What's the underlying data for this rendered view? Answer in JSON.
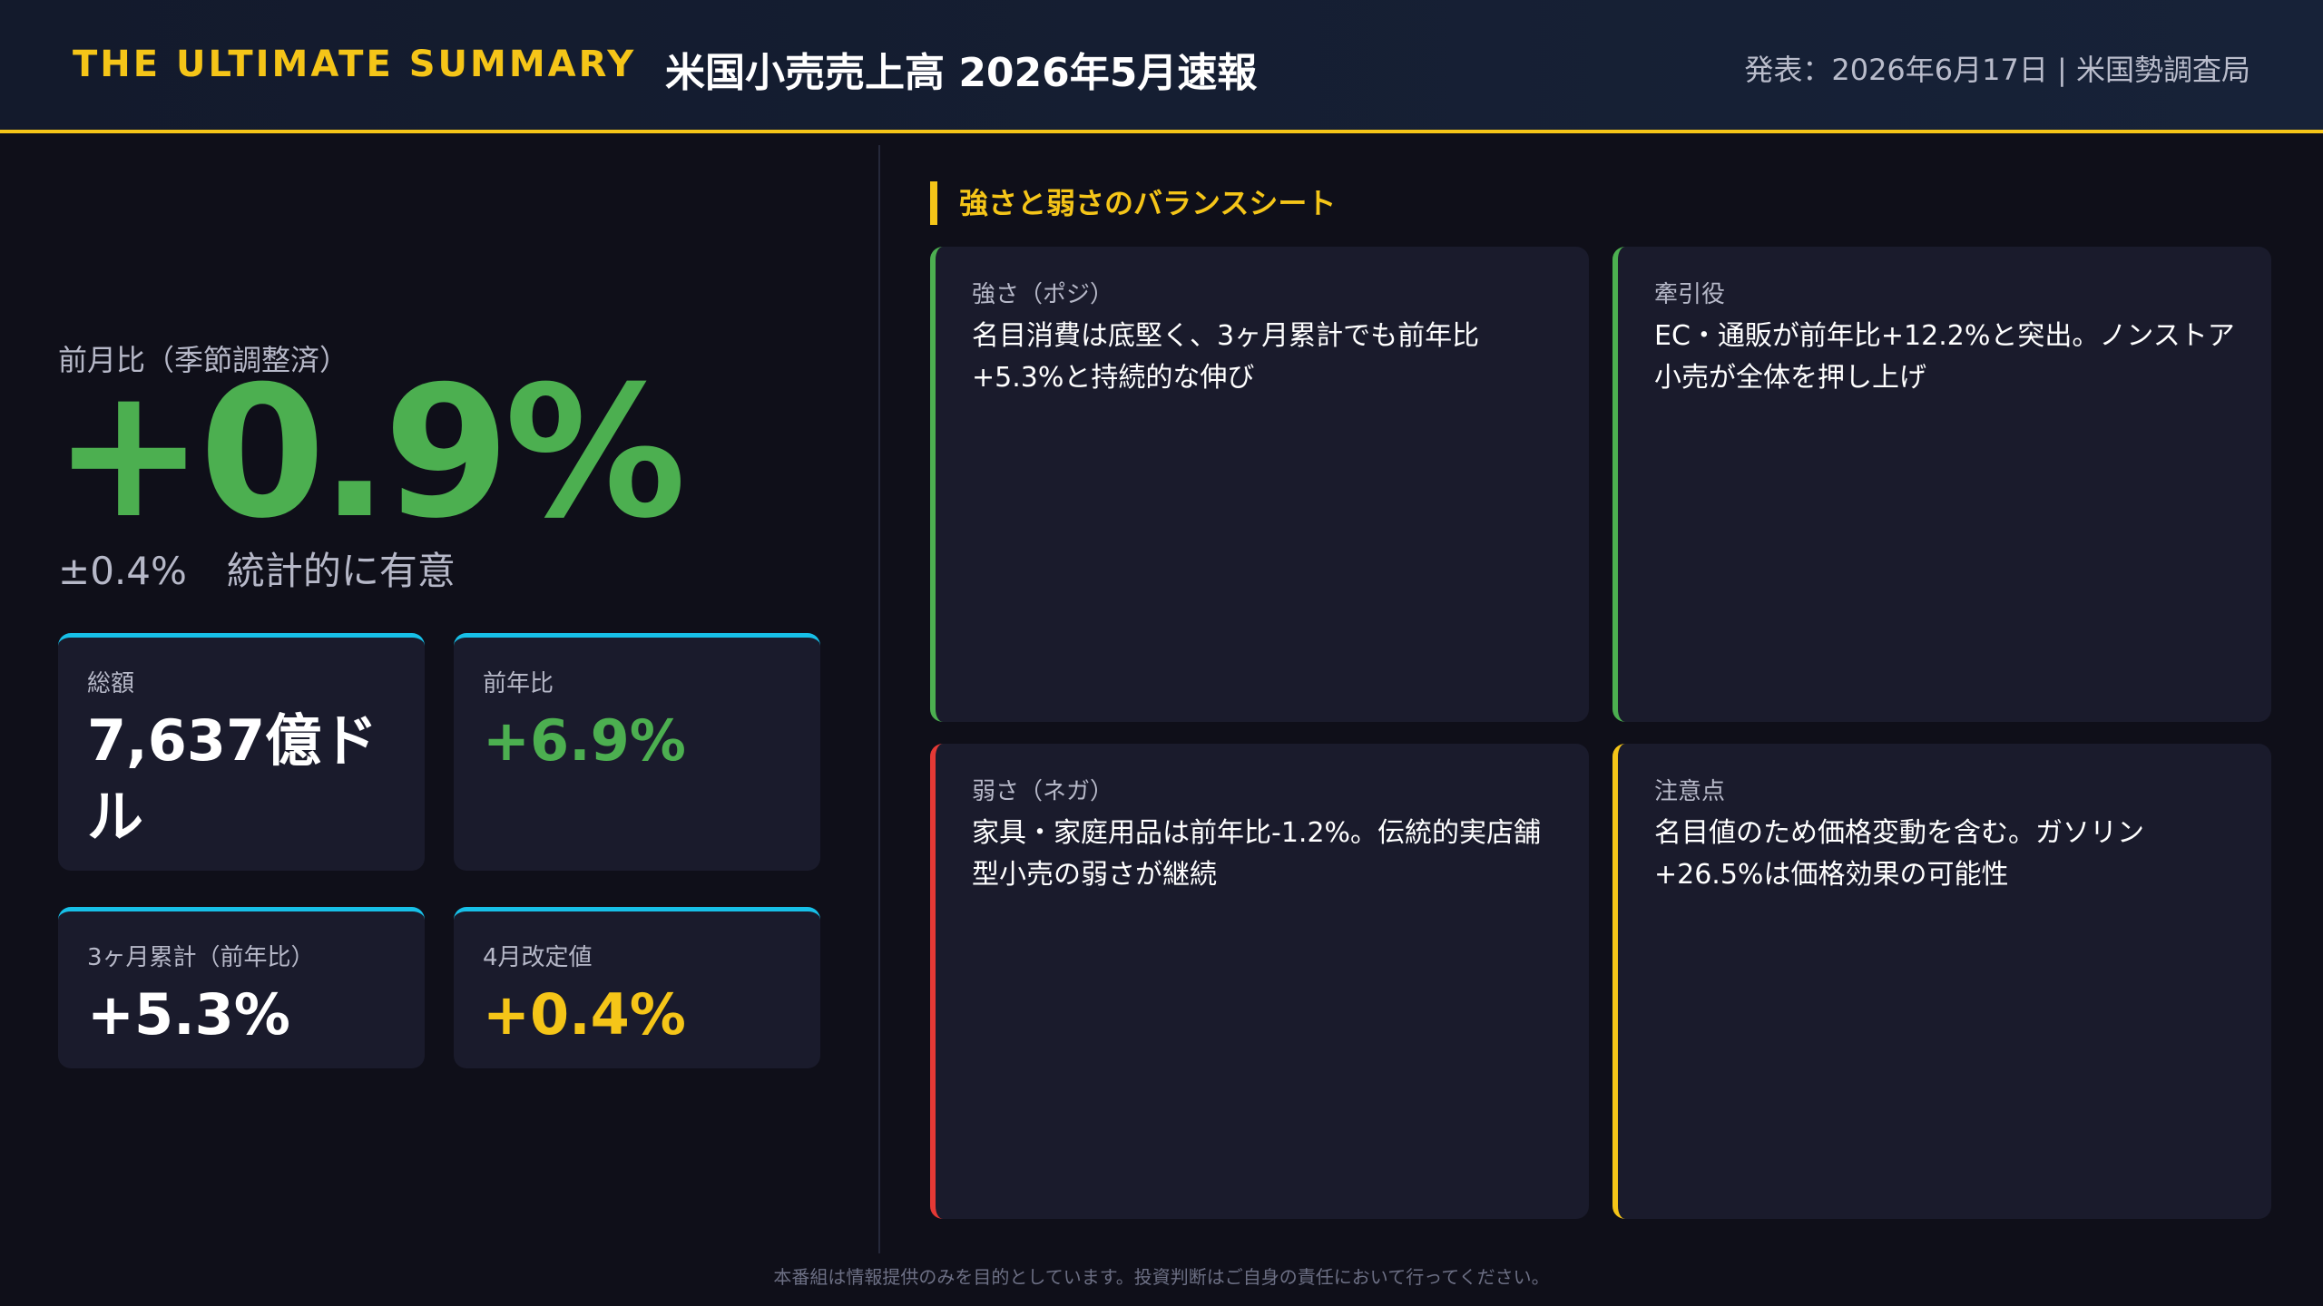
{
  "header": {
    "brand": "THE ULTIMATE SUMMARY",
    "title": "米国小売売上高 2026年5月速報",
    "published": "発表：2026年6月17日 | 米国勢調査局"
  },
  "headline": {
    "label": "前月比（季節調整済）",
    "value": "+0.9%",
    "margin": "±0.4%",
    "significance": "統計的に有意"
  },
  "kpis": [
    {
      "label": "総額",
      "value": "7,637億ドル"
    },
    {
      "label": "前年比",
      "value": "+6.9%"
    },
    {
      "label": "3ヶ月累計（前年比）",
      "value": "+5.3%"
    },
    {
      "label": "4月改定値",
      "value": "+0.4%"
    }
  ],
  "balance": {
    "title": "強さと弱さのバランスシート",
    "cards": [
      {
        "label": "強さ（ポジ）",
        "text": "名目消費は底堅く、3ヶ月累計でも前年比+5.3%と持続的な伸び"
      },
      {
        "label": "牽引役",
        "text": "EC・通販が前年比+12.2%と突出。ノンストア小売が全体を押し上げ"
      },
      {
        "label": "弱さ（ネガ）",
        "text": "家具・家庭用品は前年比-1.2%。伝統的実店舗型小売の弱さが継続"
      },
      {
        "label": "注意点",
        "text": "名目値のため価格変動を含む。ガソリン+26.5%は価格効果の可能性"
      }
    ]
  },
  "footer": {
    "disclaimer": "本番組は情報提供のみを目的としています。投資判断はご自身の責任において行ってください。"
  },
  "colors": {
    "accent": "#f5c518",
    "positive": "#4caf50",
    "negative": "#e53935",
    "kpi_border": "#17c0e8",
    "background": "#0f0f19"
  }
}
